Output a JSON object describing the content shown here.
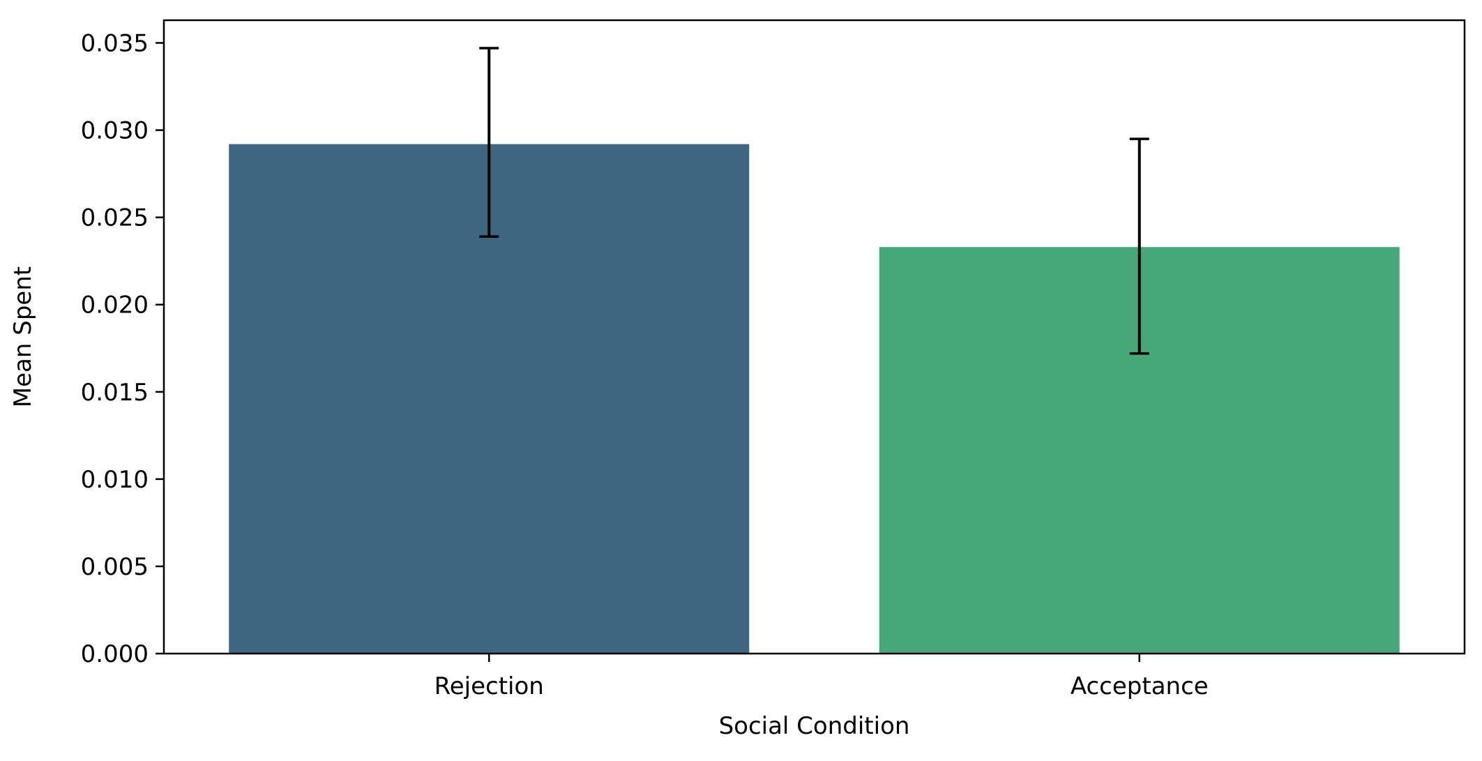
{
  "chart_data": {
    "type": "bar",
    "title": "",
    "xlabel": "Social Condition",
    "ylabel": "Mean Spent",
    "categories": [
      "Rejection",
      "Acceptance"
    ],
    "values": [
      0.0292,
      0.0233
    ],
    "error_bars": [
      {
        "low": 0.0239,
        "high": 0.0347
      },
      {
        "low": 0.0172,
        "high": 0.0295
      }
    ],
    "colors": [
      "#3e6680",
      "#46a878"
    ],
    "errorbar_color": "#000000",
    "ylim": [
      0,
      0.0363
    ],
    "yticks": [
      0.0,
      0.005,
      0.01,
      0.015,
      0.02,
      0.025,
      0.03,
      0.035
    ],
    "ytick_labels": [
      "0.000",
      "0.005",
      "0.010",
      "0.015",
      "0.020",
      "0.025",
      "0.030",
      "0.035"
    ],
    "grid": false,
    "legend": "none"
  }
}
